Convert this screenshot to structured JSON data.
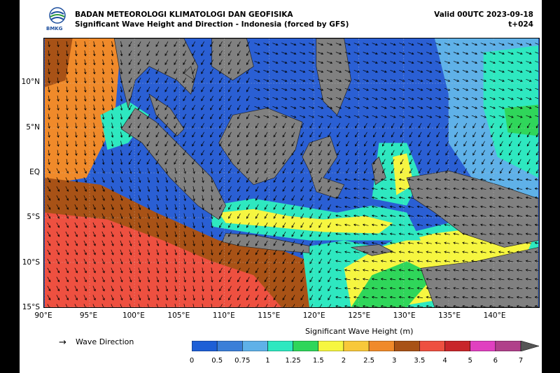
{
  "header": {
    "agency": "BADAN METEOROLOGI KLIMATOLOGI DAN GEOFISIKA",
    "subtitle": "Significant Wave Height and Direction - Indonesia (forced by GFS)",
    "valid": "Valid 00UTC 2023-09-18",
    "lead": "t+024",
    "logo_text": "BMKG"
  },
  "map": {
    "lat_labels": [
      "10°N",
      "5°N",
      "EQ",
      "5°S",
      "10°S",
      "15°S"
    ],
    "lon_labels": [
      "90°E",
      "95°E",
      "100°E",
      "105°E",
      "110°E",
      "115°E",
      "120°E",
      "125°E",
      "130°E",
      "135°E",
      "140°E"
    ],
    "lat_values": [
      10,
      5,
      0,
      -5,
      -10,
      -15
    ],
    "lon_values": [
      90,
      95,
      100,
      105,
      110,
      115,
      120,
      125,
      130,
      135,
      140
    ],
    "extent": {
      "lon_min": 90,
      "lon_max": 145,
      "lat_min": -15,
      "lat_max": 15
    },
    "land_color": "#808080",
    "arrow_direction_note_visible": false
  },
  "legend": {
    "wave_direction_label": "Wave Direction",
    "arrow_glyph": "→"
  },
  "colorbar": {
    "title": "Significant Wave Height (m)",
    "ticks": [
      "0",
      "0.5",
      "0.75",
      "1",
      "1.25",
      "1.5",
      "2",
      "2.5",
      "3",
      "3.5",
      "4",
      "5",
      "6",
      "7"
    ],
    "colors": [
      "#1e5fd6",
      "#3b7fd8",
      "#5fb1e8",
      "#2ee8c0",
      "#2fd65a",
      "#f6f640",
      "#f8c83a",
      "#f08a2a",
      "#a85216",
      "#ee5040",
      "#c8262a",
      "#e040c0",
      "#b0408a"
    ]
  }
}
